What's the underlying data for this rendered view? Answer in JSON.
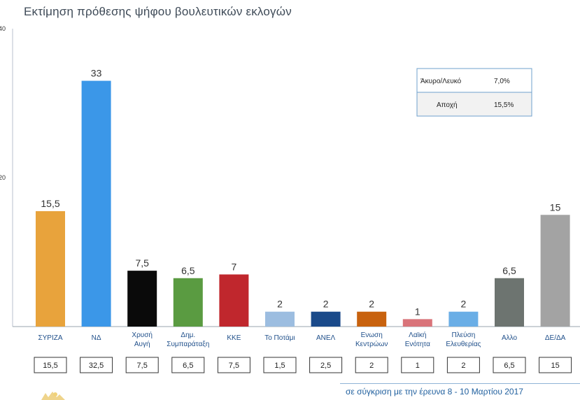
{
  "title": "Εκτίμηση πρόθεσης ψήφου βουλευτικών εκλογών",
  "footer_note": "σε σύγκριση με την έρευνα 8 - 10 Μαρτίου 2017",
  "info_box": {
    "rows": [
      {
        "label": "Άκυρο/Λευκό",
        "value": "7,0%"
      },
      {
        "label": "Αποχή",
        "value": "15,5%"
      }
    ]
  },
  "chart_data": {
    "type": "bar",
    "title": "Εκτίμηση πρόθεσης ψήφου βουλευτικών εκλογών",
    "ylim": [
      0,
      40
    ],
    "yticks": [
      "0",
      "20",
      "40"
    ],
    "grid": false,
    "categories": [
      [
        "ΣΥΡΙΖΑ"
      ],
      [
        "ΝΔ"
      ],
      [
        "Χρυσή",
        "Αυγή"
      ],
      [
        "Δημ.",
        "Συμπαράταξη"
      ],
      [
        "ΚΚΕ"
      ],
      [
        "Το Ποτάμι"
      ],
      [
        "ΑΝΕΛ"
      ],
      [
        "Ενωση",
        "Κεντρώων"
      ],
      [
        "Λαϊκή",
        "Ενότητα"
      ],
      [
        "Πλεύση",
        "Ελευθερίας"
      ],
      [
        "Αλλο"
      ],
      [
        "ΔΕ/ΔΑ"
      ]
    ],
    "values": [
      15.5,
      33,
      7.5,
      6.5,
      7,
      2,
      2,
      2,
      1,
      2,
      6.5,
      15
    ],
    "value_labels": [
      "15,5",
      "33",
      "7,5",
      "6,5",
      "7",
      "2",
      "2",
      "2",
      "1",
      "2",
      "6,5",
      "15"
    ],
    "previous_values": [
      "15,5",
      "32,5",
      "7,5",
      "6,5",
      "7,5",
      "1,5",
      "2,5",
      "2",
      "1",
      "2",
      "6,5",
      "15"
    ],
    "colors": [
      "#e8a33c",
      "#3b97e8",
      "#0a0a0a",
      "#5a9b41",
      "#c0272d",
      "#9cbde0",
      "#1a4a8a",
      "#c8620e",
      "#d9747a",
      "#6aaee6",
      "#6d7470",
      "#a3a3a3"
    ]
  }
}
